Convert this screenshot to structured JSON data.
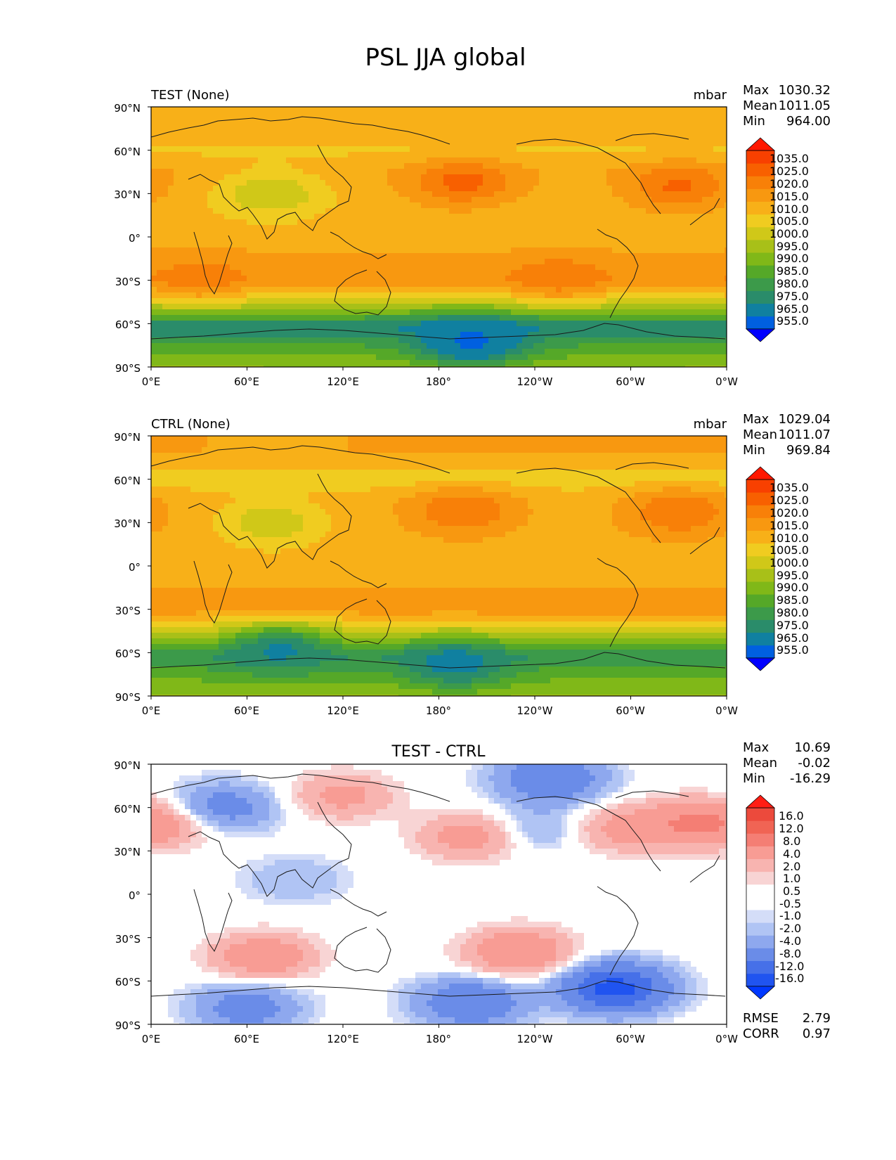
{
  "figure": {
    "title": "PSL JJA global"
  },
  "colors": {
    "abs_levels": [
      "#0000ff",
      "#0060e0",
      "#1080a0",
      "#2a8c6a",
      "#3c9a4a",
      "#55a828",
      "#80b818",
      "#a8c018",
      "#d0c818",
      "#f0cc20",
      "#f8b018",
      "#f89810",
      "#f88008",
      "#f86000",
      "#f84000",
      "#ff1800"
    ],
    "diff_levels": [
      "#0038ff",
      "#2054f0",
      "#4670e8",
      "#6a8ce8",
      "#8ea8ee",
      "#b0c4f4",
      "#d4ddf8",
      "#ffffff",
      "#ffffff",
      "#f8d4d4",
      "#f8b4b0",
      "#f89c94",
      "#f47e74",
      "#f06454",
      "#ec4a3c",
      "#ff1e14"
    ],
    "coastline": "#1a1a1a"
  },
  "chart_data": [
    {
      "type": "heatmap",
      "panel": "test",
      "title_left": "TEST (None)",
      "title_center": "",
      "units": "mbar",
      "stats": [
        {
          "label": "Max",
          "value": "1030.32"
        },
        {
          "label": "Mean",
          "value": "1011.05"
        },
        {
          "label": "Min",
          "value": "964.00"
        }
      ],
      "xticks": [
        "0°E",
        "60°E",
        "120°E",
        "180°",
        "120°W",
        "60°W",
        "0°W"
      ],
      "yticks": [
        "90°N",
        "60°N",
        "30°N",
        "0°",
        "30°S",
        "60°S",
        "90°S"
      ],
      "xlim": [
        0,
        360
      ],
      "ylim": [
        -90,
        90
      ],
      "colorbar_labels": [
        "1035.0",
        "1025.0",
        "1020.0",
        "1015.0",
        "1010.0",
        "1005.0",
        "1000.0",
        "995.0",
        "990.0",
        "985.0",
        "980.0",
        "975.0",
        "965.0",
        "955.0"
      ],
      "field_features": [
        {
          "kind": "zonal",
          "lat": 80,
          "value": 1014
        },
        {
          "kind": "zonal",
          "lat": 60,
          "value": 1009
        },
        {
          "kind": "zonal",
          "lat": 45,
          "value": 1014
        },
        {
          "kind": "zonal",
          "lat": 25,
          "value": 1012
        },
        {
          "kind": "zonal",
          "lat": 0,
          "value": 1012
        },
        {
          "kind": "zonal",
          "lat": -30,
          "value": 1019
        },
        {
          "kind": "zonal",
          "lat": -50,
          "value": 995
        },
        {
          "kind": "zonal",
          "lat": -62,
          "value": 975
        },
        {
          "kind": "zonal",
          "lat": -75,
          "value": 985
        },
        {
          "kind": "zonal",
          "lat": -90,
          "value": 995
        },
        {
          "kind": "blob",
          "lon": 195,
          "lat": 38,
          "value": 1027
        },
        {
          "kind": "blob",
          "lon": 330,
          "lat": 35,
          "value": 1026
        },
        {
          "kind": "blob",
          "lon": 255,
          "lat": -28,
          "value": 1023
        },
        {
          "kind": "blob",
          "lon": 30,
          "lat": -28,
          "value": 1022
        },
        {
          "kind": "blob",
          "lon": 75,
          "lat": 30,
          "value": 1000
        },
        {
          "kind": "blob",
          "lon": 200,
          "lat": -72,
          "value": 963
        }
      ]
    },
    {
      "type": "heatmap",
      "panel": "ctrl",
      "title_left": "CTRL (None)",
      "title_center": "",
      "units": "mbar",
      "stats": [
        {
          "label": "Max",
          "value": "1029.04"
        },
        {
          "label": "Mean",
          "value": "1011.07"
        },
        {
          "label": "Min",
          "value": "969.84"
        }
      ],
      "xticks": [
        "0°E",
        "60°E",
        "120°E",
        "180°",
        "120°W",
        "60°W",
        "0°W"
      ],
      "yticks": [
        "90°N",
        "60°N",
        "30°N",
        "0°",
        "30°S",
        "60°S",
        "90°S"
      ],
      "xlim": [
        0,
        360
      ],
      "ylim": [
        -90,
        90
      ],
      "colorbar_labels": [
        "1035.0",
        "1025.0",
        "1020.0",
        "1015.0",
        "1010.0",
        "1005.0",
        "1000.0",
        "995.0",
        "990.0",
        "985.0",
        "980.0",
        "975.0",
        "965.0",
        "955.0"
      ],
      "field_features": [
        {
          "kind": "zonal",
          "lat": 80,
          "value": 1015
        },
        {
          "kind": "zonal",
          "lat": 60,
          "value": 1007
        },
        {
          "kind": "zonal",
          "lat": 45,
          "value": 1013
        },
        {
          "kind": "zonal",
          "lat": 25,
          "value": 1013
        },
        {
          "kind": "zonal",
          "lat": 0,
          "value": 1012
        },
        {
          "kind": "zonal",
          "lat": -30,
          "value": 1018
        },
        {
          "kind": "zonal",
          "lat": -50,
          "value": 997
        },
        {
          "kind": "zonal",
          "lat": -62,
          "value": 980
        },
        {
          "kind": "zonal",
          "lat": -75,
          "value": 988
        },
        {
          "kind": "zonal",
          "lat": -90,
          "value": 996
        },
        {
          "kind": "blob",
          "lon": 195,
          "lat": 38,
          "value": 1025
        },
        {
          "kind": "blob",
          "lon": 330,
          "lat": 37,
          "value": 1025
        },
        {
          "kind": "blob",
          "lon": 75,
          "lat": 30,
          "value": 1001
        },
        {
          "kind": "blob",
          "lon": 190,
          "lat": -68,
          "value": 972
        },
        {
          "kind": "blob",
          "lon": 80,
          "lat": -58,
          "value": 974
        }
      ]
    },
    {
      "type": "heatmap",
      "panel": "diff",
      "title_left": "",
      "title_center": "TEST - CTRL",
      "units": "",
      "stats": [
        {
          "label": "Max",
          "value": "10.69"
        },
        {
          "label": "Mean",
          "value": "-0.02"
        },
        {
          "label": "Min",
          "value": "-16.29"
        }
      ],
      "xticks": [
        "0°E",
        "60°E",
        "120°E",
        "180°",
        "120°W",
        "60°W",
        "0°W"
      ],
      "yticks": [
        "90°N",
        "60°N",
        "30°N",
        "0°",
        "30°S",
        "60°S",
        "90°S"
      ],
      "xlim": [
        0,
        360
      ],
      "ylim": [
        -90,
        90
      ],
      "colorbar_labels": [
        "16.0",
        "12.0",
        "8.0",
        "4.0",
        "2.0",
        "1.0",
        "0.5",
        "-0.5",
        "-1.0",
        "-2.0",
        "-4.0",
        "-8.0",
        "-12.0",
        "-16.0"
      ],
      "footer_stats": [
        {
          "label": "RMSE",
          "value": "2.79"
        },
        {
          "label": "CORR",
          "value": "0.97"
        }
      ],
      "field_features": [
        {
          "kind": "blob",
          "lon": 70,
          "lat": -43,
          "value": 7
        },
        {
          "kind": "blob",
          "lon": 230,
          "lat": -40,
          "value": 8
        },
        {
          "kind": "blob",
          "lon": 290,
          "lat": -65,
          "value": -14
        },
        {
          "kind": "blob",
          "lon": 200,
          "lat": -75,
          "value": -8
        },
        {
          "kind": "blob",
          "lon": 60,
          "lat": -78,
          "value": -6
        },
        {
          "kind": "blob",
          "lon": 250,
          "lat": 80,
          "value": -8
        },
        {
          "kind": "blob",
          "lon": 45,
          "lat": 60,
          "value": -6
        },
        {
          "kind": "blob",
          "lon": 120,
          "lat": 68,
          "value": 5
        },
        {
          "kind": "blob",
          "lon": 200,
          "lat": 40,
          "value": 6
        },
        {
          "kind": "blob",
          "lon": 340,
          "lat": 50,
          "value": 7
        },
        {
          "kind": "blob",
          "lon": 295,
          "lat": 45,
          "value": 5
        },
        {
          "kind": "blob",
          "lon": 10,
          "lat": 48,
          "value": 4
        },
        {
          "kind": "blob",
          "lon": 90,
          "lat": 10,
          "value": -2
        },
        {
          "kind": "blob",
          "lon": 240,
          "lat": 45,
          "value": -3
        }
      ]
    }
  ]
}
